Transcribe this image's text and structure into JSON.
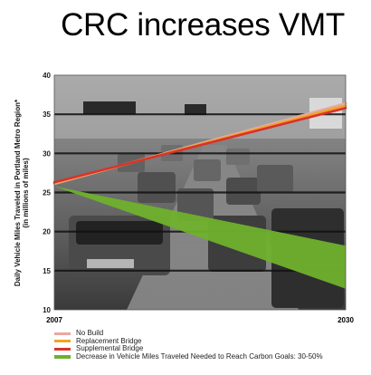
{
  "title": "CRC increases VMT",
  "chart_data": {
    "type": "line",
    "title": "CRC increases VMT",
    "ylabel": "Daily Vehicle Miles Traveled in Portland Metro Region*",
    "ylabel_sub": "(in millions of miles)",
    "xlabel": "",
    "x": [
      2007,
      2030
    ],
    "x_ticks": [
      "2007",
      "2030"
    ],
    "ylim": [
      10,
      40
    ],
    "y_ticks": [
      10,
      15,
      20,
      25,
      30,
      35,
      40
    ],
    "grid": true,
    "legend_position": "bottom",
    "series": [
      {
        "name": "No Build",
        "values": [
          26.1,
          36.4
        ],
        "color": "#e8a9a0"
      },
      {
        "name": "Replacement Bridge",
        "values": [
          26.2,
          36.1
        ],
        "color": "#f2a228"
      },
      {
        "name": "Supplemental Bridge",
        "values": [
          26.3,
          35.8
        ],
        "color": "#d8332a"
      },
      {
        "name": "Decrease in Vehicle Miles Traveled Needed to Reach Carbon Goals: 30-50%",
        "values": [
          25.8,
          18.2
        ],
        "values_low": [
          25.8,
          12.7
        ],
        "color": "#6fb12c",
        "type": "band"
      }
    ]
  }
}
